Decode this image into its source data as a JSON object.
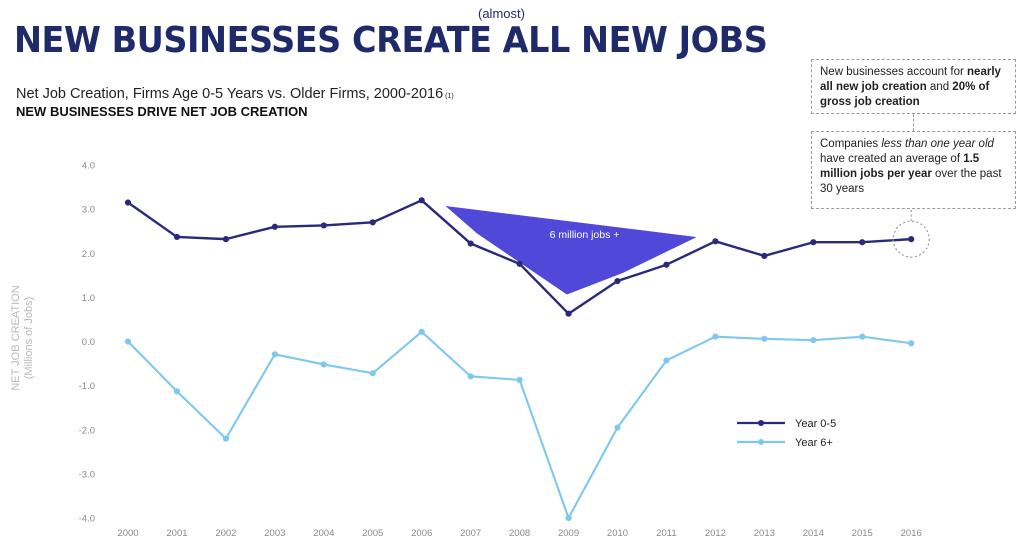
{
  "header": {
    "title": "NEW BUSINESSES CREATE ALL NEW JOBS",
    "title_note": "(almost)",
    "subtitle": "Net Job Creation, Firms Age 0-5 Years vs. Older Firms, 2000-2016",
    "subtitle_footnote": "(1)",
    "subheading": "NEW BUSINESSES DRIVE NET JOB CREATION"
  },
  "callouts": [
    {
      "parts": [
        {
          "text": "New businesses account for ",
          "bold": false,
          "italic": false
        },
        {
          "text": "nearly all new job creation",
          "bold": true,
          "italic": false
        },
        {
          "text": " and ",
          "bold": false,
          "italic": false
        },
        {
          "text": "20% of gross job creation",
          "bold": true,
          "italic": false
        }
      ]
    },
    {
      "parts": [
        {
          "text": "Companies ",
          "bold": false,
          "italic": false
        },
        {
          "text": "less than one year old",
          "bold": false,
          "italic": true
        },
        {
          "text": " have created an average of ",
          "bold": false,
          "italic": false
        },
        {
          "text": "1.5 million jobs per year",
          "bold": true,
          "italic": false
        },
        {
          "text": " over the past 30 years",
          "bold": false,
          "italic": false
        }
      ]
    }
  ],
  "chart_data": {
    "type": "line",
    "title": "Net Job Creation, Firms Age 0-5 Years vs. Older Firms, 2000-2016",
    "subtitle": "NEW BUSINESSES DRIVE NET JOB CREATION",
    "xlabel": "",
    "ylabel": "NET JOB CREATION",
    "ylabel_sub": "(Millions of Jobs)",
    "categories": [
      "2000",
      "2001",
      "2002",
      "2003",
      "2004",
      "2005",
      "2006",
      "2007",
      "2008",
      "2009",
      "2010",
      "2011",
      "2012",
      "2013",
      "2014",
      "2015",
      "2016"
    ],
    "ylim": [
      -4.0,
      4.0
    ],
    "yticks": [
      "4.0",
      "3.0",
      "2.0",
      "1.0",
      "0.0",
      "-1.0",
      "-2.0",
      "-3.0",
      "-4.0"
    ],
    "ytick_values": [
      4,
      3,
      2,
      1,
      0,
      -1,
      -2,
      -3,
      -4
    ],
    "grid": false,
    "legend_position": "bottom-right",
    "series": [
      {
        "name": "Year 0-5",
        "color": "#2b2a7a",
        "values": [
          3.15,
          2.37,
          2.32,
          2.6,
          2.63,
          2.7,
          3.2,
          2.22,
          1.76,
          0.63,
          1.37,
          1.74,
          2.27,
          1.94,
          2.25,
          2.25,
          2.32
        ]
      },
      {
        "name": "Year 6+",
        "color": "#7ec8ef",
        "values": [
          0.0,
          -1.13,
          -2.2,
          -0.29,
          -0.52,
          -0.72,
          0.22,
          -0.79,
          -0.87,
          -4.0,
          -1.95,
          -0.43,
          0.11,
          0.06,
          0.03,
          0.11,
          -0.04
        ]
      }
    ],
    "annotations": [
      {
        "text": "6 million jobs +",
        "color": "#5048d8"
      }
    ],
    "highlight_year": "2016"
  }
}
